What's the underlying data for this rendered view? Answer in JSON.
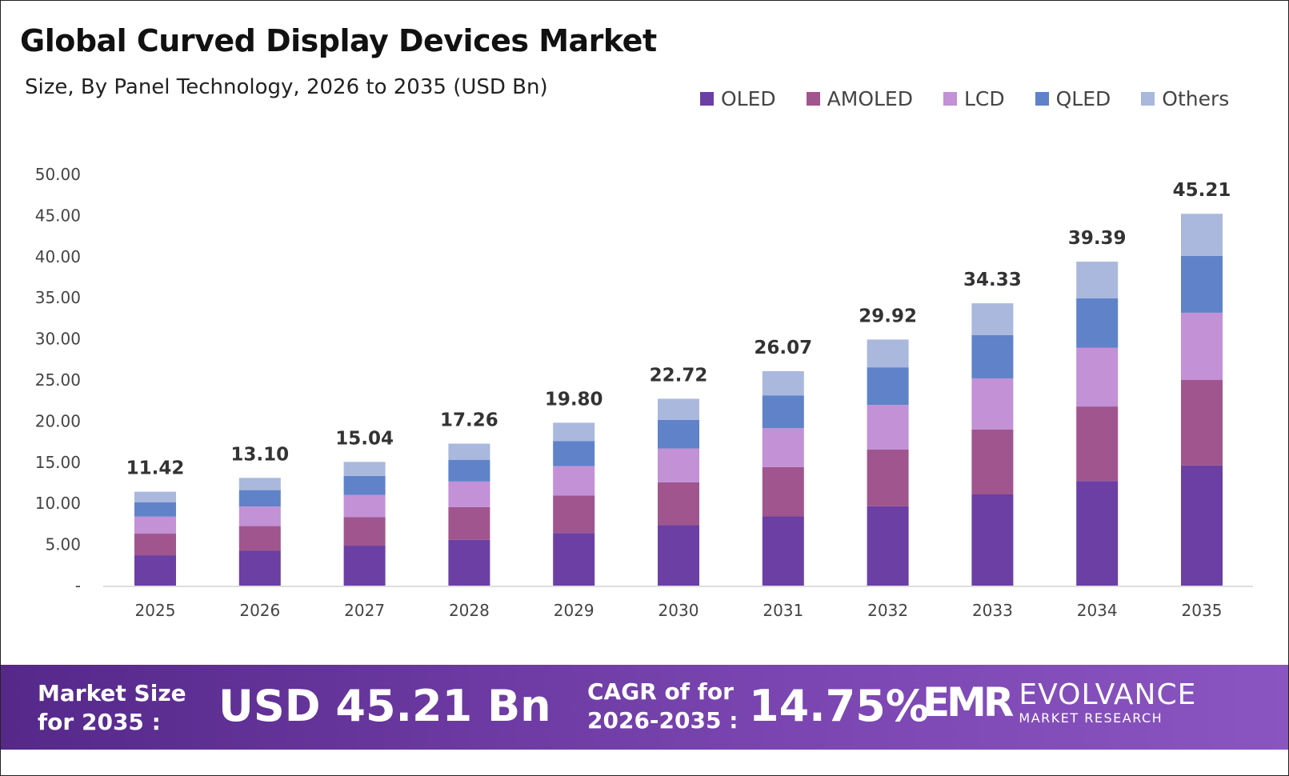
{
  "title": "Global Curved Display Devices Market",
  "subtitle": "Size, By Panel Technology, 2026 to 2035 (USD Bn)",
  "footer": {
    "market_size_label": "Market Size for 2035 :",
    "market_size_value": "USD 45.21 Bn",
    "cagr_label": "CAGR of for 2026-2035 :",
    "cagr_value": "14.75%",
    "logo_mark": "EMR",
    "logo_name": "EVOLVANCE",
    "logo_sub": "MARKET RESEARCH"
  },
  "chart_data": {
    "type": "bar",
    "stacked": true,
    "title": "Global Curved Display Devices Market",
    "subtitle": "Size, By Panel Technology, 2026 to 2035 (USD Bn)",
    "categories": [
      "2025",
      "2026",
      "2027",
      "2028",
      "2029",
      "2030",
      "2031",
      "2032",
      "2033",
      "2034",
      "2035"
    ],
    "series": [
      {
        "name": "OLED",
        "color": "#6b3fa3",
        "values": [
          3.69,
          4.23,
          4.86,
          5.57,
          6.4,
          7.34,
          8.42,
          9.66,
          11.09,
          12.72,
          14.6
        ]
      },
      {
        "name": "AMOLED",
        "color": "#a0558f",
        "values": [
          2.63,
          3.01,
          3.46,
          3.97,
          4.55,
          5.23,
          6.0,
          6.88,
          7.9,
          9.06,
          10.4
        ]
      },
      {
        "name": "LCD",
        "color": "#c291d6",
        "values": [
          2.07,
          2.37,
          2.72,
          3.12,
          3.58,
          4.11,
          4.72,
          5.42,
          6.21,
          7.13,
          8.18
        ]
      },
      {
        "name": "QLED",
        "color": "#5f82c9",
        "values": [
          1.75,
          2.0,
          2.3,
          2.64,
          3.03,
          3.48,
          3.99,
          4.58,
          5.25,
          6.03,
          6.92
        ]
      },
      {
        "name": "Others",
        "color": "#aab8de",
        "values": [
          1.28,
          1.49,
          1.7,
          1.96,
          2.24,
          2.56,
          2.94,
          3.38,
          3.88,
          4.45,
          5.11
        ]
      }
    ],
    "totals": [
      "11.42",
      "13.10",
      "15.04",
      "17.26",
      "19.80",
      "22.72",
      "26.07",
      "29.92",
      "34.33",
      "39.39",
      "45.21"
    ],
    "yticks": [
      "-",
      "5.00",
      "10.00",
      "15.00",
      "20.00",
      "25.00",
      "30.00",
      "35.00",
      "40.00",
      "45.00",
      "50.00"
    ],
    "ylim": [
      0,
      50
    ],
    "grid": false,
    "legend_position": "top-right"
  }
}
